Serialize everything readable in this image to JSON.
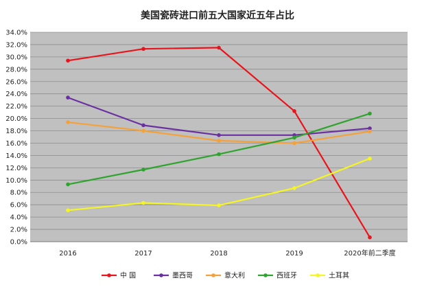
{
  "chart_data": {
    "type": "line",
    "title": "美国瓷砖进口前五大国家近五年占比",
    "categories": [
      "2016",
      "2017",
      "2018",
      "2019",
      "2020年前二季度"
    ],
    "ylim": [
      0,
      34
    ],
    "ytick_step": 2,
    "ytick_labels": [
      "0.0%",
      "2.0%",
      "4.0%",
      "6.0%",
      "8.0%",
      "10.0%",
      "12.0%",
      "14.0%",
      "16.0%",
      "18.0%",
      "20.0%",
      "22.0%",
      "24.0%",
      "26.0%",
      "28.0%",
      "30.0%",
      "32.0%",
      "34.0%"
    ],
    "grid": true,
    "legend_position": "bottom",
    "plot_background": "#c0c0c0",
    "series": [
      {
        "name": "中 国",
        "color": "#e8141b",
        "values": [
          29.4,
          31.3,
          31.5,
          21.2,
          0.7
        ]
      },
      {
        "name": "墨西哥",
        "color": "#6a2fa0",
        "values": [
          23.4,
          18.9,
          17.3,
          17.3,
          18.4
        ]
      },
      {
        "name": "意大利",
        "color": "#f5a13a",
        "values": [
          19.4,
          18.0,
          16.4,
          16.0,
          17.9
        ]
      },
      {
        "name": "西班牙",
        "color": "#2ea32e",
        "values": [
          9.3,
          11.7,
          14.2,
          16.9,
          20.8
        ]
      },
      {
        "name": "土耳其",
        "color": "#f5f523",
        "values": [
          5.1,
          6.3,
          5.9,
          8.7,
          13.5
        ]
      }
    ]
  }
}
